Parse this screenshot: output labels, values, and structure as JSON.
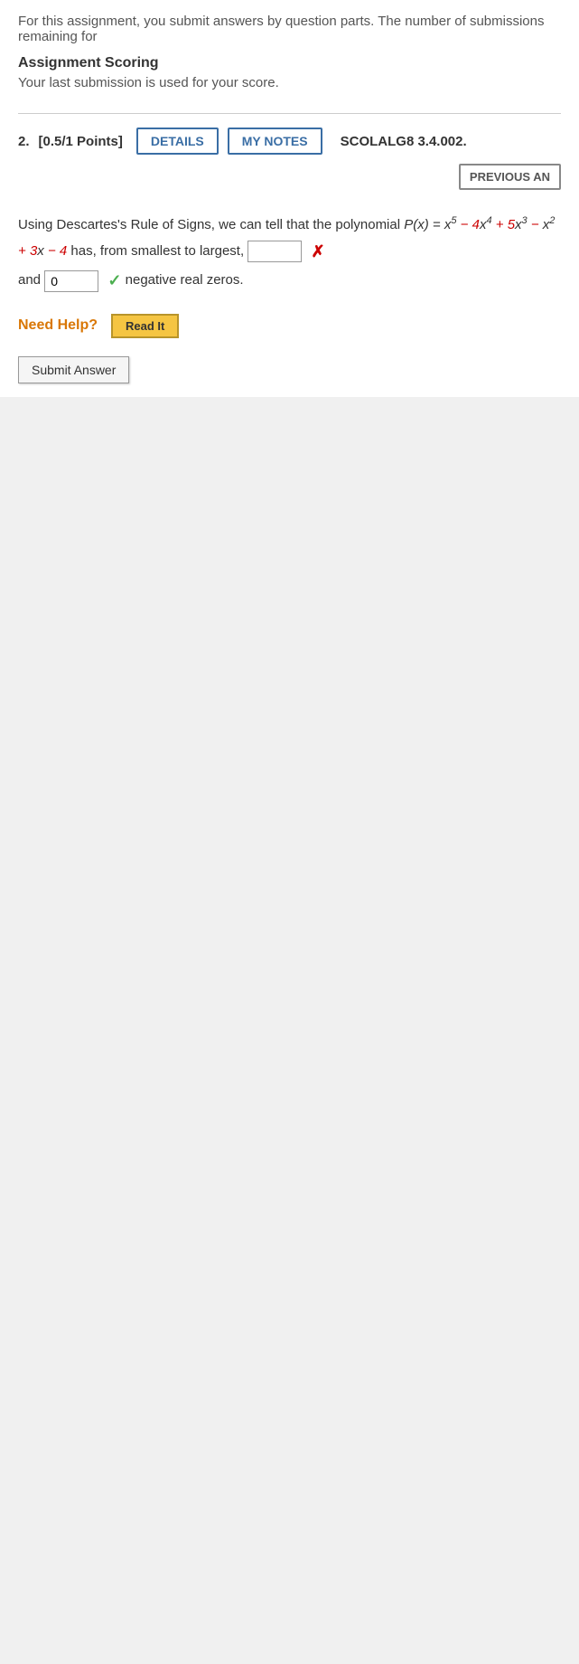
{
  "intro": "For this assignment, you submit answers by question parts. The number of submissions remaining for",
  "scoring": {
    "title": "Assignment Scoring",
    "subtitle": "Your last submission is used for your score."
  },
  "question": {
    "number": "2.",
    "points": "[0.5/1 Points]",
    "details_btn": "DETAILS",
    "notes_btn": "MY NOTES",
    "ref": "SCOLALG8 3.4.002.",
    "prev_btn": "PREVIOUS AN",
    "text_prefix": "Using Descartes's Rule of Signs, we can tell that the polynomial ",
    "poly_func": "P",
    "poly_arg": "x",
    "poly_eq": " = ",
    "term1_var": "x",
    "term1_exp": "5",
    "term2_sign": " − ",
    "term2_coef": "4",
    "term2_var": "x",
    "term2_exp": "4",
    "term3_sign": " + ",
    "term3_coef": "5",
    "term3_var": "x",
    "term3_exp": "3",
    "term4_sign": " − ",
    "term4_var": "x",
    "term4_exp": "2",
    "term5_sign": " + ",
    "term5_coef": "3",
    "term5_var": "x",
    "term6_sign": " − ",
    "term6_const": "4",
    "text_suffix": " has, from smallest to largest, ",
    "blank1_value": "",
    "text_and": "and ",
    "blank2_value": "0",
    "text_neg": " negative real zeros.",
    "need_help": "Need Help?",
    "read_it": "Read It",
    "submit": "Submit Answer"
  }
}
